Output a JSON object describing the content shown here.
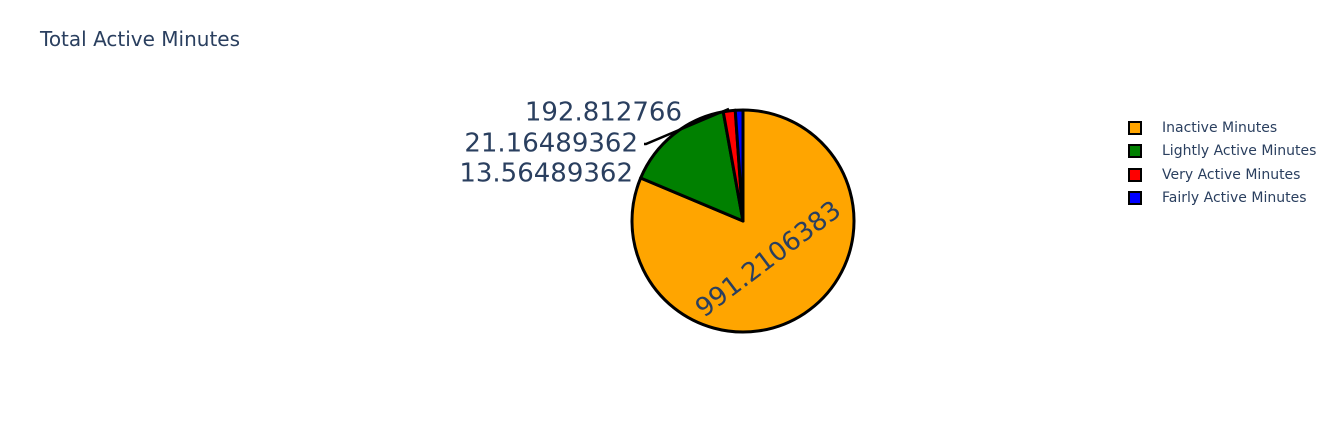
{
  "chart_data": {
    "type": "pie",
    "title": "Total Active Minutes",
    "slices": [
      {
        "label": "Inactive Minutes",
        "value": 991.2106383,
        "text": "991.2106383",
        "color": "#FFA500"
      },
      {
        "label": "Lightly Active Minutes",
        "value": 192.812766,
        "text": "192.812766",
        "color": "#008000"
      },
      {
        "label": "Very Active Minutes",
        "value": 21.16489362,
        "text": "21.16489362",
        "color": "#FF0000"
      },
      {
        "label": "Fairly Active Minutes",
        "value": 13.56489362,
        "text": "13.56489362",
        "color": "#0000FF"
      }
    ],
    "legend_position": "right"
  }
}
